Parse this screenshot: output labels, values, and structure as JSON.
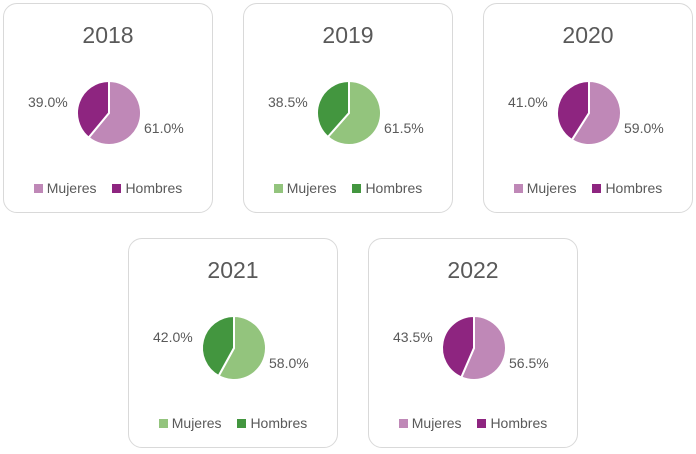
{
  "chart_data": [
    {
      "type": "pie",
      "title": "2018",
      "categories": [
        "Mujeres",
        "Hombres"
      ],
      "values": [
        61.0,
        39.0
      ],
      "labels": [
        "61.0%",
        "39.0%"
      ],
      "colors": [
        "#BF88B7",
        "#8E2580"
      ],
      "legend": "bottom"
    },
    {
      "type": "pie",
      "title": "2019",
      "categories": [
        "Mujeres",
        "Hombres"
      ],
      "values": [
        61.5,
        38.5
      ],
      "labels": [
        "61.5%",
        "38.5%"
      ],
      "colors": [
        "#93C47D",
        "#43963F"
      ],
      "legend": "bottom"
    },
    {
      "type": "pie",
      "title": "2020",
      "categories": [
        "Mujeres",
        "Hombres"
      ],
      "values": [
        59.0,
        41.0
      ],
      "labels": [
        "59.0%",
        "41.0%"
      ],
      "colors": [
        "#BF88B7",
        "#8E2580"
      ],
      "legend": "bottom"
    },
    {
      "type": "pie",
      "title": "2021",
      "categories": [
        "Mujeres",
        "Hombres"
      ],
      "values": [
        58.0,
        42.0
      ],
      "labels": [
        "58.0%",
        "42.0%"
      ],
      "colors": [
        "#93C47D",
        "#43963F"
      ],
      "legend": "bottom"
    },
    {
      "type": "pie",
      "title": "2022",
      "categories": [
        "Mujeres",
        "Hombres"
      ],
      "values": [
        56.5,
        43.5
      ],
      "labels": [
        "56.5%",
        "43.5%"
      ],
      "colors": [
        "#BF88B7",
        "#8E2580"
      ],
      "legend": "bottom"
    }
  ]
}
